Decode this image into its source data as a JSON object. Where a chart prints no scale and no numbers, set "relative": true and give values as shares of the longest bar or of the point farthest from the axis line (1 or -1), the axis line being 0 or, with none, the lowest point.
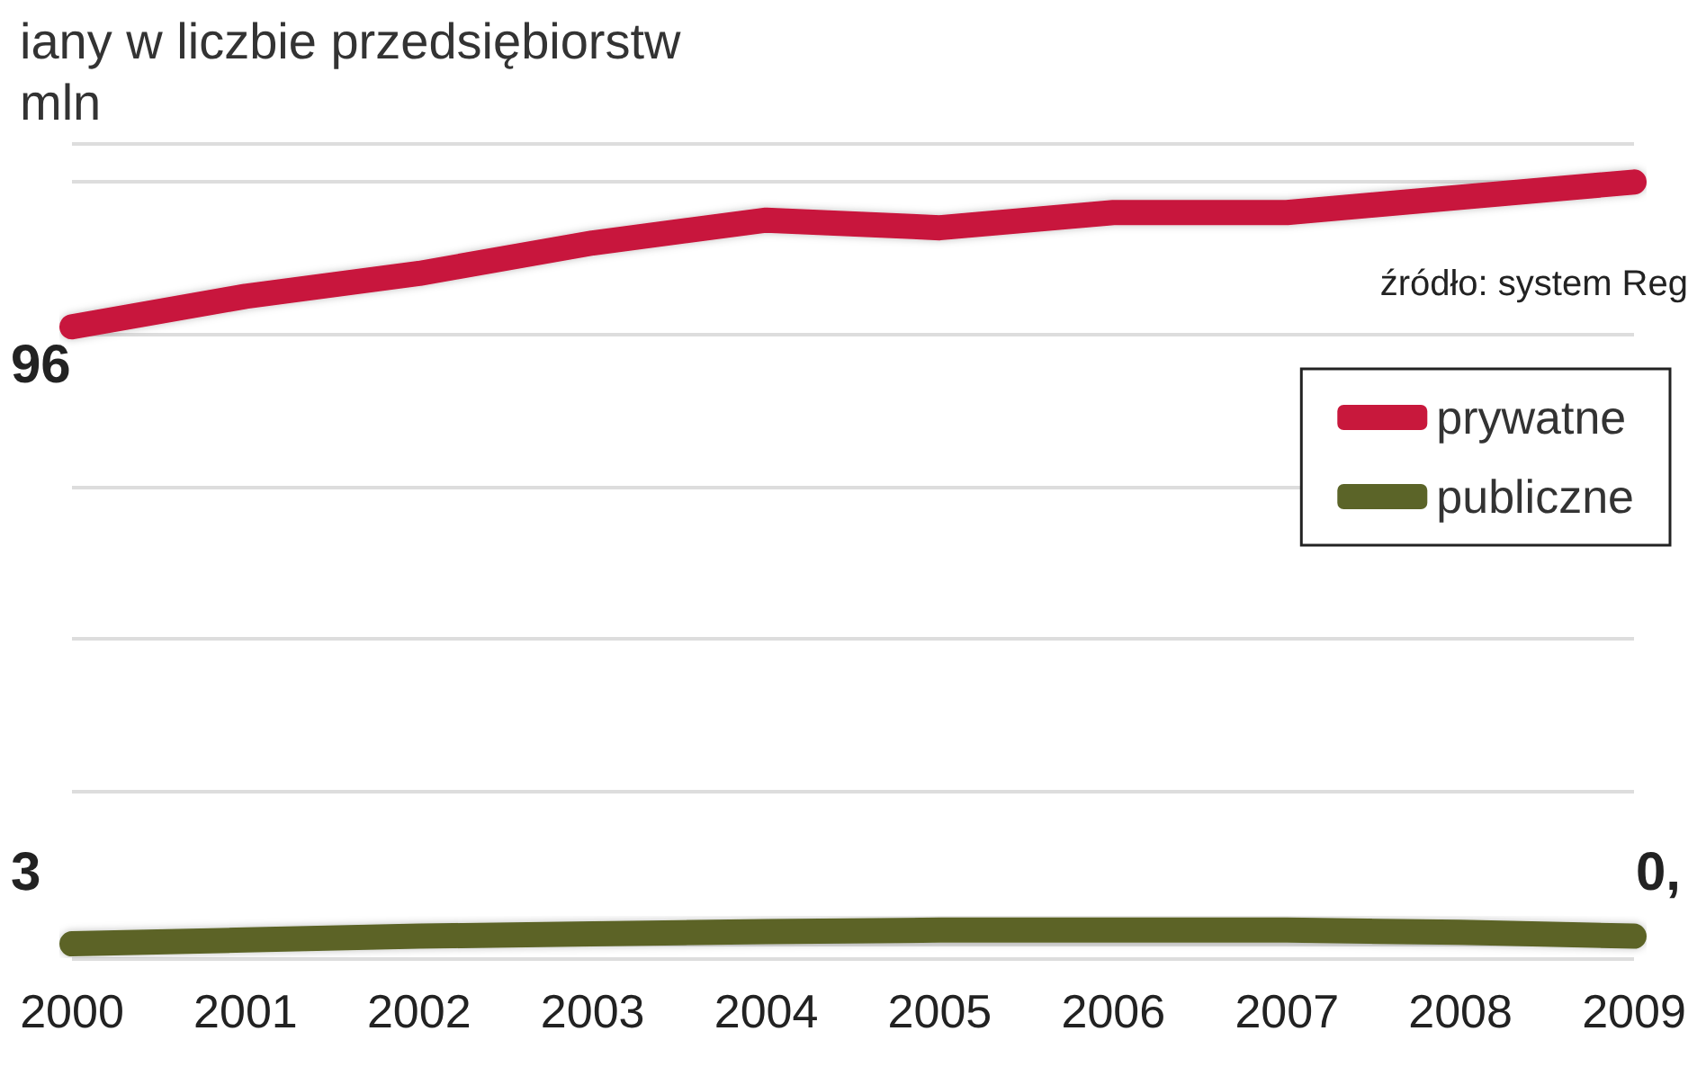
{
  "chart_data": {
    "type": "line",
    "title": "iany w liczbie przedsiębiorstw",
    "subtitle": "mln",
    "relative": true,
    "categories": [
      "2000",
      "2001",
      "2002",
      "2003",
      "2004",
      "2005",
      "2006",
      "2007",
      "2008",
      "2009"
    ],
    "series": [
      {
        "name": "prywatne",
        "color": "#c8183c",
        "values": [
          0.81,
          0.85,
          0.88,
          0.92,
          0.95,
          0.94,
          0.96,
          0.96,
          0.98,
          1
        ]
      },
      {
        "name": "publiczne",
        "color": "#5b6428",
        "values": [
          0,
          0.005,
          0.01,
          0.013,
          0.016,
          0.018,
          0.018,
          0.018,
          0.015,
          0.01
        ]
      }
    ],
    "annotations": [
      "źródło: system Reg",
      "96",
      "3",
      "0,"
    ],
    "legend": "top right",
    "grid": "y",
    "line_style": "solid"
  }
}
